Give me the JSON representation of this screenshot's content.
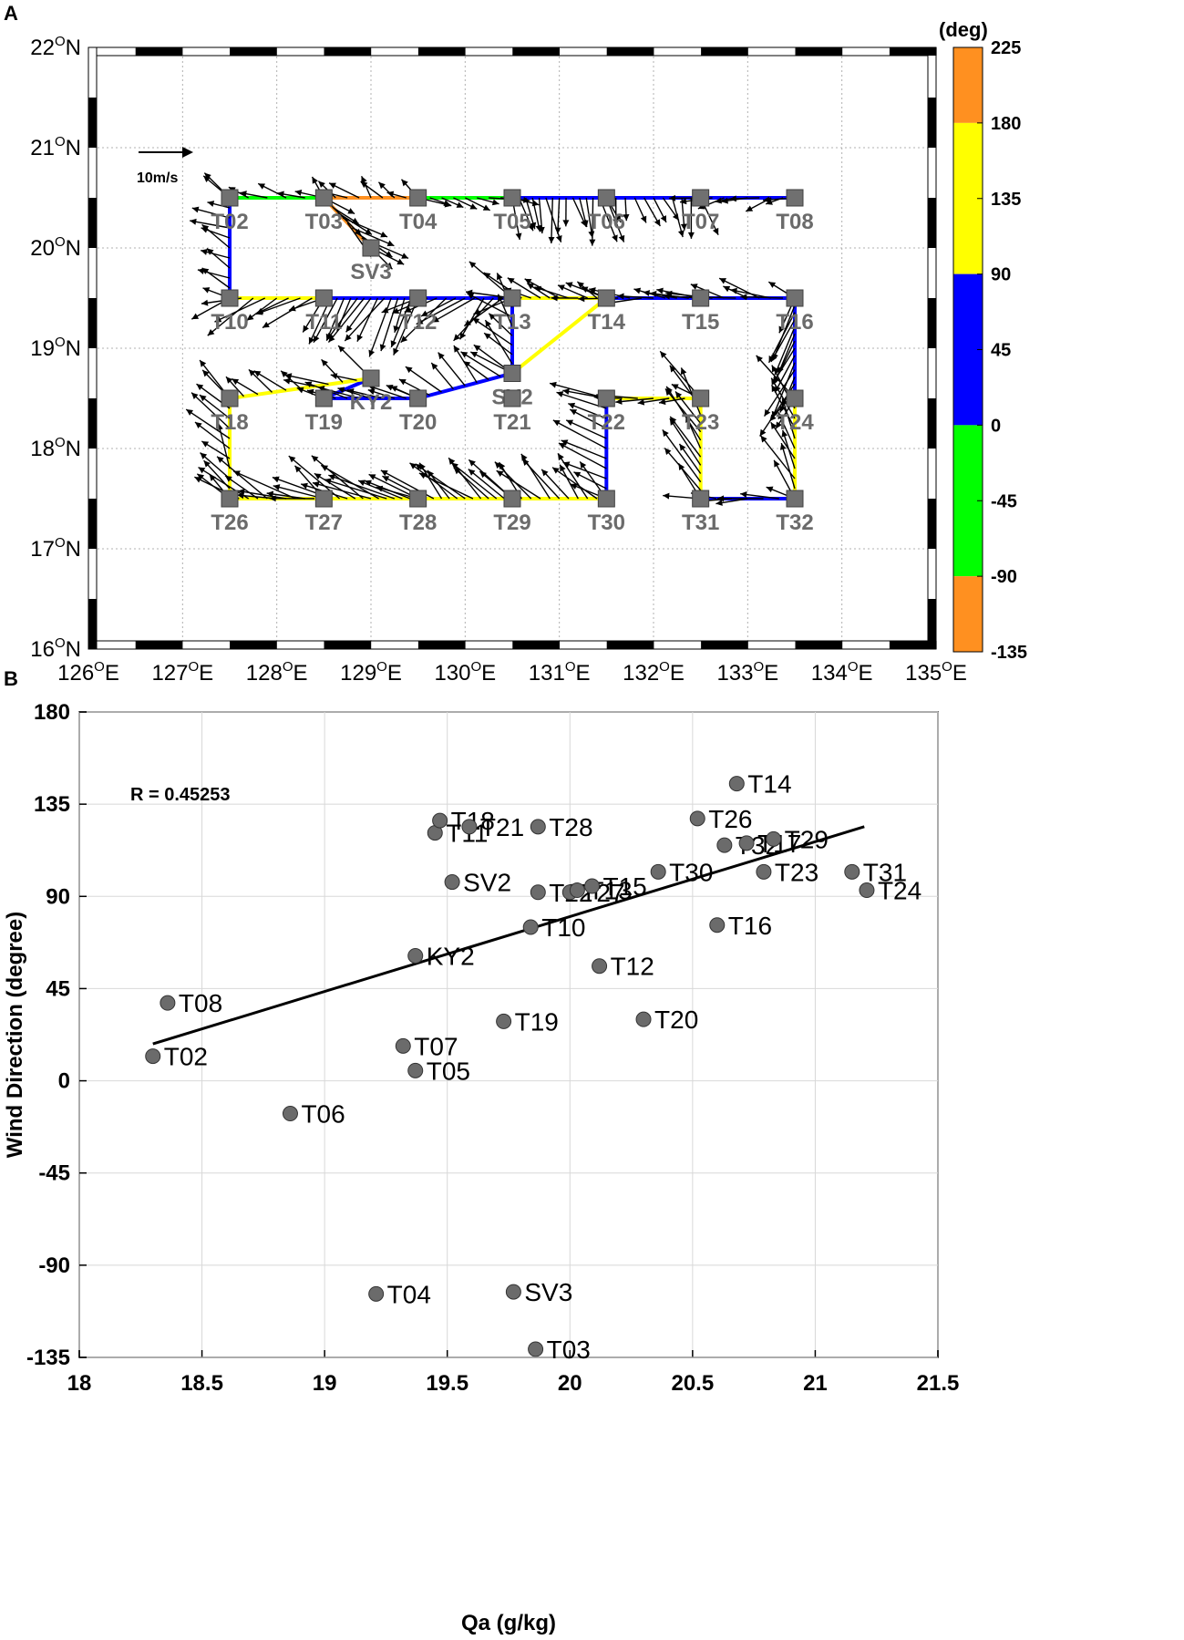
{
  "chart_data": [
    {
      "panel": "A",
      "type": "map",
      "xticks": [
        "126",
        "127",
        "128",
        "129",
        "130",
        "131",
        "132",
        "133",
        "134",
        "135"
      ],
      "xlim": [
        126,
        135
      ],
      "yticks": [
        "16",
        "17",
        "18",
        "19",
        "20",
        "21",
        "22"
      ],
      "ylim": [
        16,
        22
      ],
      "lon_suffix": "E",
      "lat_suffix": "N",
      "degree_symbol": "O",
      "grid": true,
      "scale_label": "10m/s",
      "colorbar": {
        "title": "(deg)",
        "ticks": [
          "225",
          "180",
          "135",
          "90",
          "45",
          "0",
          "-45",
          "-90",
          "-135"
        ],
        "bands": [
          {
            "from": 180,
            "to": 225,
            "color": "#ff9020"
          },
          {
            "from": 90,
            "to": 180,
            "color": "#ffff00"
          },
          {
            "from": 0,
            "to": 90,
            "color": "#0000ff"
          },
          {
            "from": -90,
            "to": 0,
            "color": "#00ff00"
          },
          {
            "from": -135,
            "to": -90,
            "color": "#ff9020"
          }
        ]
      },
      "stations": [
        {
          "name": "T02",
          "lon": 127.5,
          "lat": 20.5
        },
        {
          "name": "T03",
          "lon": 128.5,
          "lat": 20.5
        },
        {
          "name": "T04",
          "lon": 129.5,
          "lat": 20.5
        },
        {
          "name": "T05",
          "lon": 130.5,
          "lat": 20.5
        },
        {
          "name": "T06",
          "lon": 131.5,
          "lat": 20.5
        },
        {
          "name": "T07",
          "lon": 132.5,
          "lat": 20.5
        },
        {
          "name": "T08",
          "lon": 133.5,
          "lat": 20.5
        },
        {
          "name": "SV3",
          "lon": 129.0,
          "lat": 20.0
        },
        {
          "name": "T10",
          "lon": 127.5,
          "lat": 19.5
        },
        {
          "name": "T11",
          "lon": 128.5,
          "lat": 19.5
        },
        {
          "name": "T12",
          "lon": 129.5,
          "lat": 19.5
        },
        {
          "name": "T13",
          "lon": 130.5,
          "lat": 19.5
        },
        {
          "name": "T14",
          "lon": 131.5,
          "lat": 19.5
        },
        {
          "name": "T15",
          "lon": 132.5,
          "lat": 19.5
        },
        {
          "name": "T16",
          "lon": 133.5,
          "lat": 19.5
        },
        {
          "name": "SV2",
          "lon": 130.5,
          "lat": 18.75
        },
        {
          "name": "KY2",
          "lon": 129.0,
          "lat": 18.7
        },
        {
          "name": "T18",
          "lon": 127.5,
          "lat": 18.5
        },
        {
          "name": "T19",
          "lon": 128.5,
          "lat": 18.5
        },
        {
          "name": "T20",
          "lon": 129.5,
          "lat": 18.5
        },
        {
          "name": "T21",
          "lon": 130.5,
          "lat": 18.5
        },
        {
          "name": "T22",
          "lon": 131.5,
          "lat": 18.5
        },
        {
          "name": "T23",
          "lon": 132.5,
          "lat": 18.5
        },
        {
          "name": "T24",
          "lon": 133.5,
          "lat": 18.5
        },
        {
          "name": "T26",
          "lon": 127.5,
          "lat": 17.5
        },
        {
          "name": "T27",
          "lon": 128.5,
          "lat": 17.5
        },
        {
          "name": "T28",
          "lon": 129.5,
          "lat": 17.5
        },
        {
          "name": "T29",
          "lon": 130.5,
          "lat": 17.5
        },
        {
          "name": "T30",
          "lon": 131.5,
          "lat": 17.5
        },
        {
          "name": "T31",
          "lon": 132.5,
          "lat": 17.5
        },
        {
          "name": "T32",
          "lon": 133.5,
          "lat": 17.5
        }
      ]
    },
    {
      "panel": "B",
      "type": "scatter",
      "xlabel": "Qa (g/kg)",
      "ylabel": "Wind Direction (degree)",
      "xlim": [
        18,
        21.5
      ],
      "ylim": [
        -135,
        180
      ],
      "xticks": [
        "18",
        "18.5",
        "19",
        "19.5",
        "20",
        "20.5",
        "21",
        "21.5"
      ],
      "yticks": [
        "180",
        "135",
        "90",
        "45",
        "0",
        "-45",
        "-90",
        "-135"
      ],
      "grid": true,
      "annotation": "R = 0.45253",
      "fit_line": {
        "x": [
          18.3,
          21.2
        ],
        "y": [
          18,
          124
        ]
      },
      "points": [
        {
          "label": "T02",
          "x": 18.3,
          "y": 12
        },
        {
          "label": "T08",
          "x": 18.36,
          "y": 38
        },
        {
          "label": "T06",
          "x": 18.86,
          "y": -16
        },
        {
          "label": "T04",
          "x": 19.21,
          "y": -104
        },
        {
          "label": "T07",
          "x": 19.32,
          "y": 17
        },
        {
          "label": "T05",
          "x": 19.37,
          "y": 5
        },
        {
          "label": "KY2",
          "x": 19.37,
          "y": 61
        },
        {
          "label": "T11",
          "x": 19.45,
          "y": 121
        },
        {
          "label": "T18",
          "x": 19.47,
          "y": 127
        },
        {
          "label": "SV2",
          "x": 19.52,
          "y": 97
        },
        {
          "label": "T21",
          "x": 19.59,
          "y": 124
        },
        {
          "label": "T19",
          "x": 19.73,
          "y": 29
        },
        {
          "label": "SV3",
          "x": 19.77,
          "y": -103
        },
        {
          "label": "T10",
          "x": 19.84,
          "y": 75
        },
        {
          "label": "T03",
          "x": 19.86,
          "y": -131
        },
        {
          "label": "T22",
          "x": 19.87,
          "y": 92
        },
        {
          "label": "T28",
          "x": 19.87,
          "y": 124
        },
        {
          "label": "T27",
          "x": 20.0,
          "y": 92
        },
        {
          "label": "T13",
          "x": 20.03,
          "y": 93
        },
        {
          "label": "T15",
          "x": 20.09,
          "y": 95
        },
        {
          "label": "T12",
          "x": 20.12,
          "y": 56
        },
        {
          "label": "T20",
          "x": 20.3,
          "y": 30
        },
        {
          "label": "T30",
          "x": 20.36,
          "y": 102
        },
        {
          "label": "T26",
          "x": 20.52,
          "y": 128
        },
        {
          "label": "T16",
          "x": 20.6,
          "y": 76
        },
        {
          "label": "T32",
          "x": 20.63,
          "y": 115
        },
        {
          "label": "T14",
          "x": 20.68,
          "y": 145
        },
        {
          "label": "T17",
          "x": 20.72,
          "y": 116
        },
        {
          "label": "T29",
          "x": 20.83,
          "y": 118
        },
        {
          "label": "T23",
          "x": 20.79,
          "y": 102
        },
        {
          "label": "T31",
          "x": 21.15,
          "y": 102
        },
        {
          "label": "T24",
          "x": 21.21,
          "y": 93
        }
      ]
    }
  ],
  "labels": {
    "panelA": "A",
    "panelB": "B"
  },
  "colors": {
    "arrow": "#000000",
    "station": "#707070",
    "point": "#6b6b6b"
  }
}
